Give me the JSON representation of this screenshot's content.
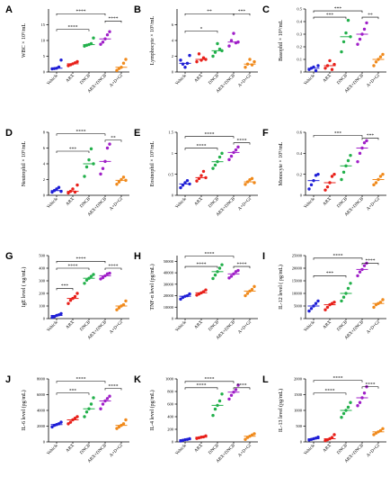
{
  "groups": [
    "Vehicle",
    "ABX",
    "DNCB",
    "ABX+DNCB",
    "A+D+GI"
  ],
  "colors": [
    "#1f1fd6",
    "#e8201a",
    "#22b04b",
    "#a020c8",
    "#f08a1c"
  ],
  "chart_data": [
    {
      "type": "scatter",
      "label": "A",
      "ylabel": "WBC × 10⁹/mL",
      "yticks": [
        0,
        5,
        10,
        15
      ],
      "ylim": [
        0,
        20
      ],
      "points": [
        [
          1,
          1.1,
          1.2,
          1.6,
          3.8
        ],
        [
          2.0,
          2.3,
          2.6,
          2.9,
          3.3
        ],
        [
          8.2,
          8.5,
          8.7,
          9.0,
          10.8
        ],
        [
          8.8,
          9.5,
          10.5,
          11.8,
          12.8
        ],
        [
          0.5,
          1.1,
          1.5,
          2.8,
          4.0
        ]
      ],
      "brackets": [
        {
          "from": 0,
          "to": 2,
          "y": 13.5,
          "text": "****"
        },
        {
          "from": 0,
          "to": 3,
          "y": 18.5,
          "text": "****"
        },
        {
          "from": 3,
          "to": 4,
          "y": 16.2,
          "text": "****"
        }
      ]
    },
    {
      "type": "scatter",
      "label": "B",
      "ylabel": "Lymphocyte × 10⁹/mL",
      "yticks": [
        0,
        2,
        4,
        6
      ],
      "ylim": [
        0,
        8
      ],
      "points": [
        [
          1.5,
          1.0,
          0.6,
          1.1,
          2.1
        ],
        [
          1.3,
          2.3,
          1.5,
          1.8,
          1.6
        ],
        [
          2.0,
          2.5,
          3.6,
          2.9,
          2.7
        ],
        [
          3.3,
          4.0,
          4.9,
          3.7,
          3.8
        ],
        [
          0.6,
          1.0,
          1.6,
          0.9,
          1.3
        ]
      ],
      "brackets": [
        {
          "from": 0,
          "to": 2,
          "y": 5.2,
          "text": "*"
        },
        {
          "from": 0,
          "to": 3,
          "y": 7.4,
          "text": "**"
        },
        {
          "from": 3,
          "to": 4,
          "y": 7.4,
          "text": "***"
        }
      ]
    },
    {
      "type": "scatter",
      "label": "C",
      "ylabel": "Basophil × 10⁹/mL",
      "yticks": [
        0,
        0.1,
        0.2,
        0.3,
        0.4,
        0.5
      ],
      "ylim": [
        0,
        0.5
      ],
      "points": [
        [
          0.02,
          0.03,
          0.04,
          0.01,
          0.05
        ],
        [
          0.03,
          0.05,
          0.09,
          0.02,
          0.06
        ],
        [
          0.16,
          0.24,
          0.31,
          0.41,
          0.28
        ],
        [
          0.22,
          0.26,
          0.3,
          0.34,
          0.39
        ],
        [
          0.05,
          0.08,
          0.1,
          0.12,
          0.14
        ]
      ],
      "brackets": [
        {
          "from": 0,
          "to": 2,
          "y": 0.435,
          "text": "***"
        },
        {
          "from": 0,
          "to": 3,
          "y": 0.485,
          "text": "***"
        },
        {
          "from": 3,
          "to": 4,
          "y": 0.435,
          "text": "**"
        }
      ]
    },
    {
      "type": "scatter",
      "label": "D",
      "ylabel": "Neutrophil × 10⁹/mL",
      "yticks": [
        0,
        2,
        4,
        6,
        8
      ],
      "ylim": [
        0,
        8
      ],
      "points": [
        [
          0.4,
          0.6,
          0.8,
          1.0,
          0.5
        ],
        [
          0.3,
          0.5,
          0.8,
          0.4,
          1.3
        ],
        [
          2.4,
          3.6,
          4.5,
          5.9,
          4.0
        ],
        [
          2.7,
          3.4,
          4.3,
          6.0,
          6.5
        ],
        [
          1.4,
          1.7,
          2.0,
          2.3,
          1.9
        ]
      ],
      "brackets": [
        {
          "from": 0,
          "to": 2,
          "y": 5.6,
          "text": "***"
        },
        {
          "from": 0,
          "to": 3,
          "y": 7.8,
          "text": "****"
        },
        {
          "from": 3,
          "to": 4,
          "y": 7.0,
          "text": "**"
        }
      ]
    },
    {
      "type": "scatter",
      "label": "E",
      "ylabel": "Eosinophil × 10⁹/mL",
      "yticks": [
        0,
        0.5,
        1.0,
        1.5
      ],
      "ylim": [
        0,
        1.5
      ],
      "points": [
        [
          0.18,
          0.24,
          0.3,
          0.35,
          0.27
        ],
        [
          0.34,
          0.4,
          0.47,
          0.57,
          0.42
        ],
        [
          0.64,
          0.72,
          0.8,
          0.91,
          1.0
        ],
        [
          0.85,
          0.93,
          1.02,
          1.08,
          1.15
        ],
        [
          0.26,
          0.32,
          0.37,
          0.4,
          0.3
        ]
      ],
      "brackets": [
        {
          "from": 0,
          "to": 2,
          "y": 1.12,
          "text": "****"
        },
        {
          "from": 0,
          "to": 3,
          "y": 1.4,
          "text": "****"
        },
        {
          "from": 3,
          "to": 4,
          "y": 1.25,
          "text": "****"
        }
      ]
    },
    {
      "type": "scatter",
      "label": "F",
      "ylabel": "Monocyte × 10⁹/mL",
      "yticks": [
        0,
        0.2,
        0.4,
        0.6
      ],
      "ylim": [
        0,
        0.6
      ],
      "points": [
        [
          0.06,
          0.1,
          0.14,
          0.19,
          0.2
        ],
        [
          0.05,
          0.08,
          0.12,
          0.18,
          0.2
        ],
        [
          0.15,
          0.22,
          0.28,
          0.33,
          0.38
        ],
        [
          0.32,
          0.4,
          0.45,
          0.5,
          0.52
        ],
        [
          0.1,
          0.12,
          0.15,
          0.18,
          0.2
        ]
      ],
      "brackets": [
        {
          "from": 0,
          "to": 3,
          "y": 0.57,
          "text": "***"
        },
        {
          "from": 3,
          "to": 4,
          "y": 0.545,
          "text": "***"
        }
      ]
    },
    {
      "type": "scatter",
      "label": "G",
      "ylabel": "IgE level ( ng/mL)",
      "yticks": [
        0,
        100,
        200,
        300,
        400,
        500
      ],
      "ylim": [
        0,
        500
      ],
      "points": [
        [
          10,
          15,
          25,
          30,
          40
        ],
        [
          120,
          145,
          160,
          175,
          200
        ],
        [
          280,
          305,
          320,
          335,
          350
        ],
        [
          315,
          325,
          340,
          355,
          360
        ],
        [
          70,
          85,
          100,
          110,
          140
        ]
      ],
      "brackets": [
        {
          "from": 0,
          "to": 1,
          "y": 240,
          "text": "***"
        },
        {
          "from": 0,
          "to": 2,
          "y": 400,
          "text": "****"
        },
        {
          "from": 0,
          "to": 3,
          "y": 455,
          "text": "****"
        },
        {
          "from": 3,
          "to": 4,
          "y": 400,
          "text": "****"
        }
      ]
    },
    {
      "type": "scatter",
      "label": "H",
      "ylabel": "TNF-α level (pg/mL)",
      "yticks": [
        0,
        10000,
        20000,
        30000,
        40000,
        50000
      ],
      "ylim": [
        0,
        55000
      ],
      "points": [
        [
          17000,
          18500,
          19500,
          20000,
          21500
        ],
        [
          20500,
          21500,
          22500,
          23500,
          25000
        ],
        [
          35000,
          38000,
          41000,
          44000,
          47000
        ],
        [
          35500,
          37000,
          39000,
          41000,
          42000
        ],
        [
          20000,
          22000,
          24000,
          25500,
          28000
        ]
      ],
      "brackets": [
        {
          "from": 0,
          "to": 2,
          "y": 45500,
          "text": "****"
        },
        {
          "from": 0,
          "to": 3,
          "y": 54500,
          "text": "****"
        },
        {
          "from": 3,
          "to": 4,
          "y": 45500,
          "text": "****"
        }
      ]
    },
    {
      "type": "scatter",
      "label": "I",
      "ylabel": "IL-12 level ( pg/mL)",
      "yticks": [
        0,
        5000,
        10000,
        15000,
        20000,
        25000
      ],
      "ylim": [
        0,
        25000
      ],
      "points": [
        [
          3000,
          4000,
          5000,
          6000,
          7000
        ],
        [
          3500,
          4500,
          5500,
          6000,
          6500
        ],
        [
          7000,
          8500,
          10000,
          12000,
          14000
        ],
        [
          17000,
          18500,
          19500,
          21000,
          22000
        ],
        [
          4500,
          5500,
          6000,
          6500,
          7500
        ]
      ],
      "brackets": [
        {
          "from": 0,
          "to": 2,
          "y": 17000,
          "text": "***"
        },
        {
          "from": 0,
          "to": 3,
          "y": 24000,
          "text": "****"
        },
        {
          "from": 3,
          "to": 4,
          "y": 22000,
          "text": "****"
        }
      ]
    },
    {
      "type": "scatter",
      "label": "J",
      "ylabel": "IL-6 level (pg/mL)",
      "yticks": [
        0,
        2000,
        4000,
        6000,
        8000
      ],
      "ylim": [
        0,
        8000
      ],
      "points": [
        [
          1900,
          2100,
          2200,
          2300,
          2500
        ],
        [
          2300,
          2500,
          2800,
          3000,
          3200
        ],
        [
          3200,
          3800,
          4200,
          4800,
          5600
        ],
        [
          4200,
          4800,
          5200,
          5500,
          5800
        ],
        [
          1700,
          1900,
          2100,
          2300,
          2800
        ]
      ],
      "brackets": [
        {
          "from": 0,
          "to": 2,
          "y": 6200,
          "text": "***"
        },
        {
          "from": 0,
          "to": 3,
          "y": 7700,
          "text": "****"
        },
        {
          "from": 3,
          "to": 4,
          "y": 6800,
          "text": "****"
        }
      ]
    },
    {
      "type": "scatter",
      "label": "K",
      "ylabel": "IL-4 level (pg/mL)",
      "yticks": [
        0,
        200,
        400,
        600,
        800,
        1000
      ],
      "ylim": [
        0,
        1000
      ],
      "points": [
        [
          15,
          25,
          35,
          40,
          50
        ],
        [
          55,
          65,
          75,
          80,
          95
        ],
        [
          420,
          520,
          580,
          650,
          760
        ],
        [
          680,
          740,
          790,
          830,
          900
        ],
        [
          40,
          70,
          90,
          110,
          130
        ]
      ],
      "brackets": [
        {
          "from": 0,
          "to": 2,
          "y": 860,
          "text": "****"
        },
        {
          "from": 0,
          "to": 3,
          "y": 960,
          "text": "****"
        },
        {
          "from": 3,
          "to": 4,
          "y": 860,
          "text": "****"
        }
      ]
    },
    {
      "type": "scatter",
      "label": "L",
      "ylabel": "IL-13 level (pg/mL)",
      "yticks": [
        0,
        500,
        1000,
        1500,
        2000
      ],
      "ylim": [
        0,
        2000
      ],
      "points": [
        [
          60,
          80,
          100,
          120,
          150
        ],
        [
          40,
          70,
          100,
          140,
          230
        ],
        [
          780,
          900,
          1000,
          1100,
          1250
        ],
        [
          1150,
          1250,
          1400,
          1550,
          1750
        ],
        [
          230,
          280,
          320,
          360,
          420
        ]
      ],
      "brackets": [
        {
          "from": 0,
          "to": 2,
          "y": 1550,
          "text": "****"
        },
        {
          "from": 0,
          "to": 3,
          "y": 1950,
          "text": "****"
        },
        {
          "from": 3,
          "to": 4,
          "y": 1750,
          "text": "****"
        }
      ]
    }
  ]
}
